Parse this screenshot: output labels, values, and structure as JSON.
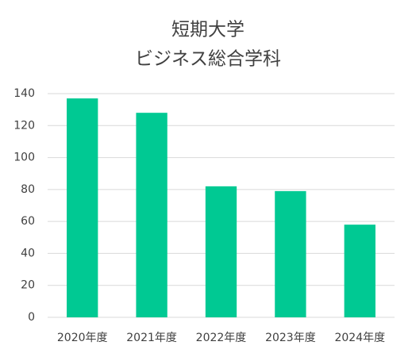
{
  "chart_data": {
    "type": "bar",
    "title": [
      "短期大学",
      "ビジネス総合学科"
    ],
    "categories": [
      "2020年度",
      "2021年度",
      "2022年度",
      "2023年度",
      "2024年度"
    ],
    "values": [
      137,
      128,
      82,
      79,
      58
    ],
    "color": "#00c993",
    "ylim": [
      0,
      140
    ],
    "yticks": [
      0,
      20,
      40,
      60,
      80,
      100,
      120,
      140
    ],
    "grid": true
  }
}
